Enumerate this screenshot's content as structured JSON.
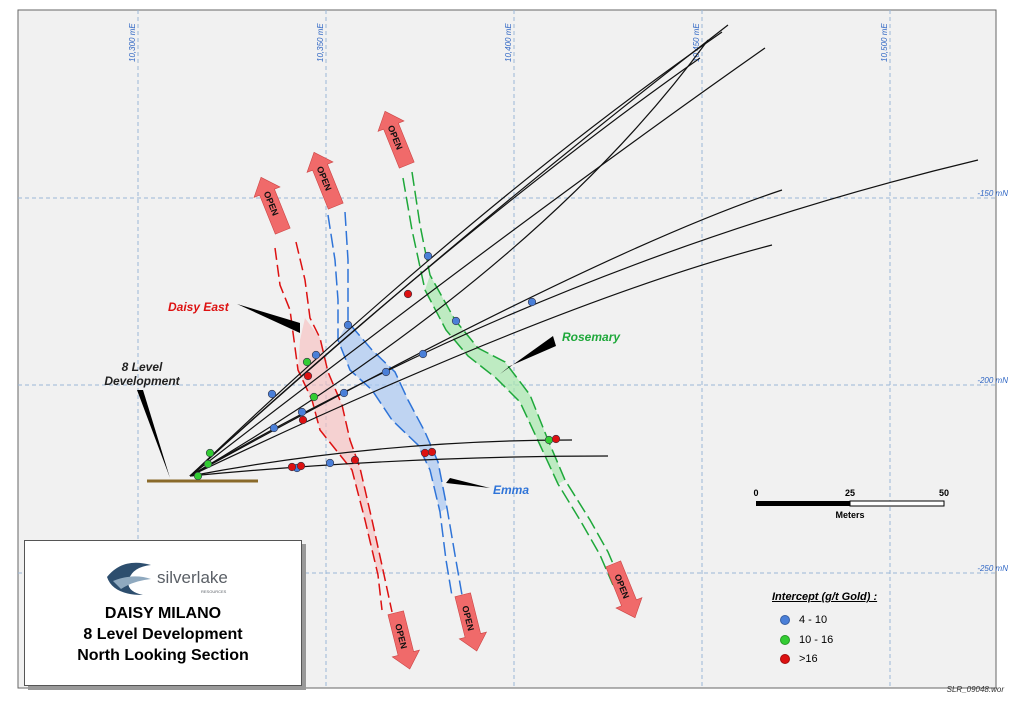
{
  "easting_labels": [
    "10,300 mE",
    "10,350 mE",
    "10,400 mE",
    "10,450 mE",
    "10,500 mE"
  ],
  "northing_labels": [
    "-150 mN",
    "-200 mN",
    "-250 mN"
  ],
  "lode_labels": {
    "daisy_east": "Daisy East",
    "rosemary": "Rosemary",
    "emma": "Emma",
    "development": [
      "8 Level",
      "Development"
    ]
  },
  "open_label": "OPEN",
  "scale_bar": {
    "ticks": [
      "0",
      "25",
      "50"
    ],
    "unit": "Meters"
  },
  "legend": {
    "title": "Intercept (g/t Gold) :",
    "items": [
      {
        "label": "4 - 10",
        "color": "#4a7fd8"
      },
      {
        "label": "10 - 16",
        "color": "#33cc33"
      },
      {
        "label": ">16",
        "color": "#dd1111"
      }
    ]
  },
  "title_block": {
    "logo_text": "silverlake",
    "logo_subtext": "RESOURCES",
    "lines": [
      "DAISY MILANO",
      "8 Level Development",
      "North Looking Section"
    ]
  },
  "file_ref": "SLR_09048.wor",
  "colors": {
    "daisy_east": "#dd1111",
    "emma": "#2f74d8",
    "rosemary": "#1ea83a",
    "open_arrow": "#f06a6a",
    "grid": "#9ab8d8",
    "background": "#f1f1f1"
  }
}
